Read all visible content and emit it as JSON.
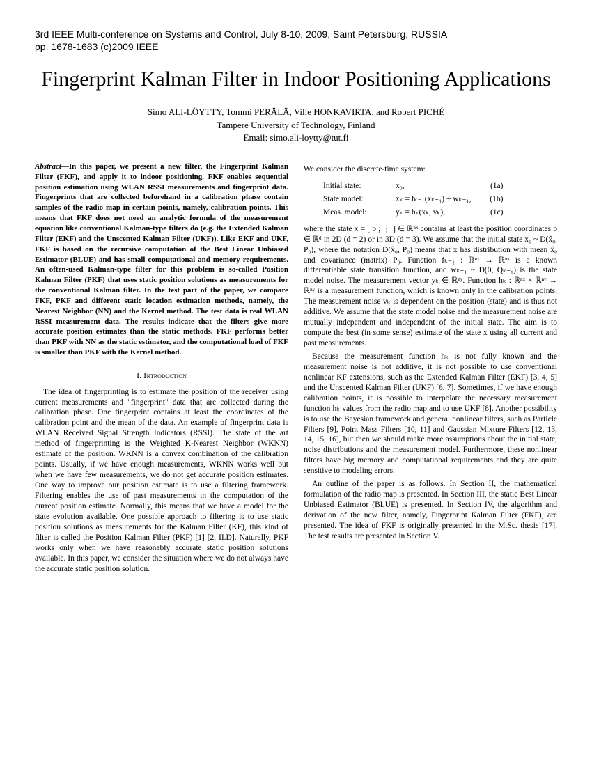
{
  "conference": {
    "line1": "3rd IEEE Multi-conference on Systems and Control, July 8-10, 2009, Saint Petersburg, RUSSIA",
    "line2": "pp. 1678-1683 (c)2009 IEEE"
  },
  "title": "Fingerprint Kalman Filter in Indoor Positioning Applications",
  "authors": {
    "names": "Simo ALI-LÖYTTY, Tommi PERÄLÄ, Ville HONKAVIRTA, and Robert PICHÉ",
    "affiliation": "Tampere University of Technology, Finland",
    "email": "Email: simo.ali-loytty@tut.fi"
  },
  "abstract": "In this paper, we present a new filter, the Fingerprint Kalman Filter (FKF), and apply it to indoor positioning. FKF enables sequential position estimation using WLAN RSSI measurements and fingerprint data. Fingerprints that are collected beforehand in a calibration phase contain samples of the radio map in certain points, namely, calibration points. This means that FKF does not need an analytic formula of the measurement equation like conventional Kalman-type filters do (e.g. the Extended Kalman Filter (EKF) and the Unscented Kalman Filter (UKF)). Like EKF and UKF, FKF is based on the recursive computation of the Best Linear Unbiased Estimator (BLUE) and has small computational and memory requirements. An often-used Kalman-type filter for this problem is so-called Position Kalman Filter (PKF) that uses static position solutions as measurements for the conventional Kalman filter. In the test part of the paper, we compare FKF, PKF and different static location estimation methods, namely, the Nearest Neighbor (NN) and the Kernel method. The test data is real WLAN RSSI measurement data. The results indicate that the filters give more accurate position estimates than the static methods. FKF performs better than PKF with NN as the static estimator, and the computational load of FKF is smaller than PKF with the Kernel method.",
  "section1": {
    "heading": "I.  Introduction",
    "p1": "The idea of fingerprinting is to estimate the position of the receiver using current measurements and \"fingerprint\" data that are collected during the calibration phase. One fingerprint contains at least the coordinates of the calibration point and the mean of the data. An example of fingerprint data is WLAN Received Signal Strength Indicators (RSSI). The state of the art method of fingerprinting is the Weighted K-Nearest Neighbor (WKNN) estimate of the position. WKNN is a convex combination of the calibration points. Usually, if we have enough measurements, WKNN works well but when we have few measurements, we do not get accurate position estimates. One way to improve our position estimate is to use a filtering framework. Filtering enables the use of past measurements in the computation of the current position estimate. Normally, this means that we have a model for the state evolution available. One possible approach to filtering is to use static position solutions as measurements for the Kalman Filter (KF), this kind of filter is called the Position Kalman Filter (PKF) [1] [2, II.D]. Naturally, PKF works only when we have reasonably accurate static position solutions available. In this paper, we consider the situation where we do not always have the accurate static position solution."
  },
  "col2": {
    "intro": "We consider the discrete-time system:",
    "eqs": {
      "r1_label": "Initial state:",
      "r1_eq": "x₀,",
      "r1_no": "(1a)",
      "r2_label": "State model:",
      "r2_eq": "xₖ = fₖ₋₁(xₖ₋₁) + wₖ₋₁,",
      "r2_no": "(1b)",
      "r3_label": "Meas. model:",
      "r3_eq": "yₖ = hₖ(xₖ, vₖ),",
      "r3_no": "(1c)"
    },
    "p1": "where the state x = [ p ; ⋮ ] ∈ ℝⁿˣ contains at least the position coordinates p ∈ ℝᵈ in 2D (d = 2) or in 3D (d = 3). We assume that the initial state x₀ ~ D(x̂₀, P₀), where the notation D(x̂₀, P₀) means that x has distribution with mean x̂₀ and covariance (matrix) P₀. Function fₖ₋₁ : ℝⁿˣ → ℝⁿˣ is a known differentiable state transition function, and wₖ₋₁ ~ D(0, Qₖ₋₁) is the state model noise. The measurement vector yₖ ∈ ℝⁿʸ. Function hₖ : ℝⁿˣ × ℝⁿᵛ → ℝⁿʸ is a measurement function, which is known only in the calibration points. The measurement noise vₖ is dependent on the position (state) and is thus not additive. We assume that the state model noise and the measurement noise are mutually independent and independent of the initial state. The aim is to compute the best (in some sense) estimate of the state x using all current and past measurements.",
    "p2": "Because the measurement function hₖ is not fully known and the measurement noise is not additive, it is not possible to use conventional nonlinear KF extensions, such as the Extended Kalman Filter (EKF) [3, 4, 5] and the Unscented Kalman Filter (UKF) [6, 7]. Sometimes, if we have enough calibration points, it is possible to interpolate the necessary measurement function hₖ values from the radio map and to use UKF [8]. Another possibility is to use the Bayesian framework and general nonlinear filters, such as Particle Filters [9], Point Mass Filters [10, 11] and Gaussian Mixture Filters [12, 13, 14, 15, 16], but then we should make more assumptions about the initial state, noise distributions and the measurement model. Furthermore, these nonlinear filters have big memory and computational requirements and they are quite sensitive to modeling errors.",
    "p3": "An outline of the paper is as follows. In Section II, the mathematical formulation of the radio map is presented. In Section III, the static Best Linear Unbiased Estimator (BLUE) is presented. In Section IV, the algorithm and derivation of the new filter, namely, Fingerprint Kalman Filter (FKF), are presented. The idea of FKF is originally presented in the M.Sc. thesis [17]. The test results are presented in Section V."
  }
}
